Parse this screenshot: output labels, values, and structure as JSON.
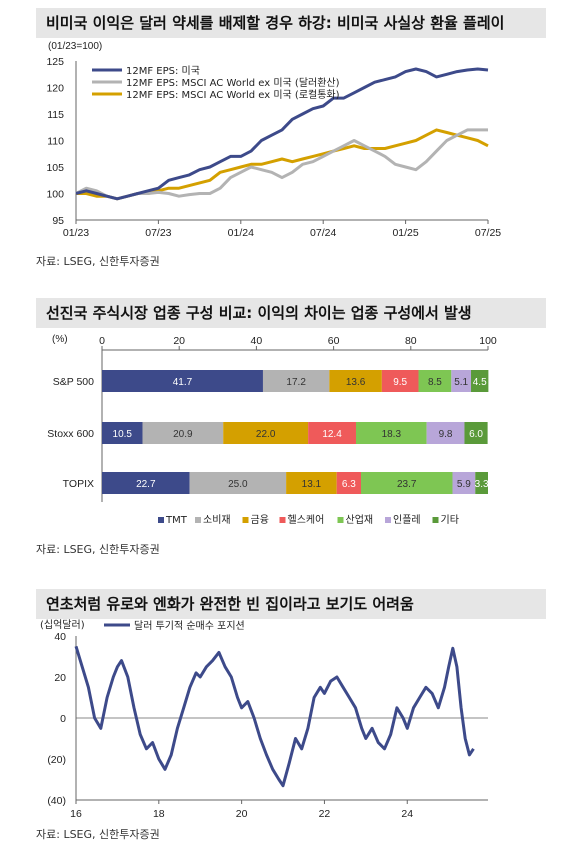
{
  "panels": [
    {
      "title": "비미국 이익은 달러 약세를 배제할 경우 하강: 비미국 사실상 환율 플레이",
      "source": "자료: LSEG, 신한투자증권"
    },
    {
      "title": "선진국 주식시장 업종 구성 비교: 이익의 차이는 업종 구성에서 발생",
      "source": "자료: LSEG, 신한투자증권"
    },
    {
      "title": "연초처럼 유로와 엔화가 완전한 빈 집이라고 보기도 어려움",
      "source": "자료: LSEG, 신한투자증권"
    }
  ],
  "chart_data": [
    {
      "type": "line",
      "unit_label": "(01/23=100)",
      "x_ticks": [
        "01/23",
        "07/23",
        "01/24",
        "07/24",
        "01/25",
        "07/25"
      ],
      "ylim": [
        95,
        125
      ],
      "y_ticks": [
        95,
        100,
        105,
        110,
        115,
        120,
        125
      ],
      "colors": [
        "#3d4a8a",
        "#b3b3b3",
        "#d4a000"
      ],
      "series": [
        {
          "name": "12MF EPS: 미국",
          "color": "#3d4a8a",
          "points": [
            [
              0,
              100
            ],
            [
              1,
              100.5
            ],
            [
              2,
              100
            ],
            [
              3,
              99.5
            ],
            [
              4,
              99
            ],
            [
              5,
              99.5
            ],
            [
              6,
              100
            ],
            [
              7,
              100.5
            ],
            [
              8,
              101
            ],
            [
              9,
              102.5
            ],
            [
              10,
              103
            ],
            [
              11,
              103.5
            ],
            [
              12,
              104.5
            ],
            [
              13,
              105
            ],
            [
              14,
              106
            ],
            [
              15,
              107
            ],
            [
              16,
              107
            ],
            [
              17,
              108
            ],
            [
              18,
              110
            ],
            [
              19,
              111
            ],
            [
              20,
              112
            ],
            [
              21,
              114
            ],
            [
              22,
              115
            ],
            [
              23,
              116
            ],
            [
              24,
              116.5
            ],
            [
              25,
              118
            ],
            [
              26,
              118
            ],
            [
              27,
              119
            ],
            [
              28,
              120
            ],
            [
              29,
              121
            ],
            [
              30,
              121.5
            ],
            [
              31,
              122
            ],
            [
              32,
              123
            ],
            [
              33,
              123.5
            ],
            [
              34,
              123
            ],
            [
              35,
              122
            ],
            [
              36,
              122.5
            ],
            [
              37,
              123
            ],
            [
              38,
              123.3
            ],
            [
              39,
              123.5
            ],
            [
              40,
              123.3
            ]
          ]
        },
        {
          "name": "12MF EPS: MSCI AC World ex 미국 (달러환산)",
          "color": "#b3b3b3",
          "points": [
            [
              0,
              100
            ],
            [
              1,
              101
            ],
            [
              2,
              100.5
            ],
            [
              3,
              99.5
            ],
            [
              4,
              99
            ],
            [
              5,
              99.5
            ],
            [
              6,
              100
            ],
            [
              7,
              100
            ],
            [
              8,
              100.2
            ],
            [
              9,
              100
            ],
            [
              10,
              99.5
            ],
            [
              11,
              99.8
            ],
            [
              12,
              100
            ],
            [
              13,
              100
            ],
            [
              14,
              101
            ],
            [
              15,
              103
            ],
            [
              16,
              104
            ],
            [
              17,
              105
            ],
            [
              18,
              104.5
            ],
            [
              19,
              104
            ],
            [
              20,
              103
            ],
            [
              21,
              104
            ],
            [
              22,
              105.5
            ],
            [
              23,
              106
            ],
            [
              24,
              107
            ],
            [
              25,
              108
            ],
            [
              26,
              109
            ],
            [
              27,
              110
            ],
            [
              28,
              109
            ],
            [
              29,
              108
            ],
            [
              30,
              107
            ],
            [
              31,
              105.5
            ],
            [
              32,
              105
            ],
            [
              33,
              104.5
            ],
            [
              34,
              106
            ],
            [
              35,
              108
            ],
            [
              36,
              110
            ],
            [
              37,
              111
            ],
            [
              38,
              112
            ],
            [
              39,
              112
            ],
            [
              40,
              112
            ]
          ]
        },
        {
          "name": "12MF EPS: MSCI AC World ex 미국 (로컬통화)",
          "color": "#d4a000",
          "points": [
            [
              0,
              100
            ],
            [
              1,
              100
            ],
            [
              2,
              99.5
            ],
            [
              3,
              99.5
            ],
            [
              4,
              99
            ],
            [
              5,
              99.5
            ],
            [
              6,
              100
            ],
            [
              7,
              100
            ],
            [
              8,
              100.5
            ],
            [
              9,
              101
            ],
            [
              10,
              101
            ],
            [
              11,
              101.5
            ],
            [
              12,
              102
            ],
            [
              13,
              102.5
            ],
            [
              14,
              104
            ],
            [
              15,
              104.5
            ],
            [
              16,
              105
            ],
            [
              17,
              105.5
            ],
            [
              18,
              105.5
            ],
            [
              19,
              106
            ],
            [
              20,
              106.5
            ],
            [
              21,
              106
            ],
            [
              22,
              106.5
            ],
            [
              23,
              107
            ],
            [
              24,
              107.5
            ],
            [
              25,
              108
            ],
            [
              26,
              108.5
            ],
            [
              27,
              109
            ],
            [
              28,
              108.5
            ],
            [
              29,
              108.5
            ],
            [
              30,
              108.5
            ],
            [
              31,
              109
            ],
            [
              32,
              109.5
            ],
            [
              33,
              110
            ],
            [
              34,
              111
            ],
            [
              35,
              112
            ],
            [
              36,
              111.5
            ],
            [
              37,
              111
            ],
            [
              38,
              110.5
            ],
            [
              39,
              110
            ],
            [
              40,
              109
            ]
          ]
        }
      ]
    },
    {
      "type": "bar",
      "unit_label": "(%)",
      "stacked": true,
      "orientation": "horizontal",
      "xlim": [
        0,
        100
      ],
      "x_ticks": [
        0,
        20,
        40,
        60,
        80,
        100
      ],
      "categories": [
        "S&P 500",
        "Stoxx 600",
        "TOPIX"
      ],
      "series": [
        {
          "name": "TMT",
          "color": "#3d4a8a",
          "values": [
            41.7,
            10.5,
            22.7
          ]
        },
        {
          "name": "소비재",
          "color": "#b3b3b3",
          "values": [
            17.2,
            20.9,
            25.0
          ]
        },
        {
          "name": "금융",
          "color": "#d4a000",
          "values": [
            13.6,
            22.0,
            13.1
          ]
        },
        {
          "name": "헬스케어",
          "color": "#ef5a5a",
          "values": [
            9.5,
            12.4,
            6.3
          ]
        },
        {
          "name": "산업재",
          "color": "#7ec653",
          "values": [
            8.5,
            18.3,
            23.7
          ]
        },
        {
          "name": "인플레",
          "color": "#b8a6d9",
          "values": [
            5.1,
            9.8,
            5.9
          ]
        },
        {
          "name": "기타",
          "color": "#5a9a3a",
          "values": [
            4.5,
            6.0,
            3.3
          ]
        }
      ]
    },
    {
      "type": "line",
      "unit_label": "(십억달러)",
      "x_ticks": [
        "16",
        "18",
        "20",
        "22",
        "24"
      ],
      "ylim": [
        -40,
        40
      ],
      "y_ticks": [
        "40",
        "20",
        "0",
        "(20)",
        "(40)"
      ],
      "y_values": [
        40,
        20,
        0,
        -20,
        -40
      ],
      "series": [
        {
          "name": "달러 투기적 순매수 포지션",
          "color": "#3d4a8a",
          "points": [
            [
              2016.0,
              35
            ],
            [
              2016.15,
              25
            ],
            [
              2016.3,
              15
            ],
            [
              2016.45,
              0
            ],
            [
              2016.6,
              -5
            ],
            [
              2016.75,
              10
            ],
            [
              2016.9,
              20
            ],
            [
              2017.0,
              25
            ],
            [
              2017.1,
              28
            ],
            [
              2017.25,
              20
            ],
            [
              2017.4,
              5
            ],
            [
              2017.55,
              -8
            ],
            [
              2017.7,
              -15
            ],
            [
              2017.85,
              -12
            ],
            [
              2018.0,
              -20
            ],
            [
              2018.15,
              -25
            ],
            [
              2018.3,
              -18
            ],
            [
              2018.45,
              -5
            ],
            [
              2018.6,
              5
            ],
            [
              2018.75,
              15
            ],
            [
              2018.9,
              22
            ],
            [
              2019.0,
              20
            ],
            [
              2019.15,
              25
            ],
            [
              2019.3,
              28
            ],
            [
              2019.45,
              32
            ],
            [
              2019.6,
              25
            ],
            [
              2019.75,
              20
            ],
            [
              2019.9,
              10
            ],
            [
              2020.0,
              5
            ],
            [
              2020.15,
              8
            ],
            [
              2020.3,
              0
            ],
            [
              2020.45,
              -10
            ],
            [
              2020.6,
              -18
            ],
            [
              2020.75,
              -25
            ],
            [
              2020.9,
              -30
            ],
            [
              2021.0,
              -33
            ],
            [
              2021.15,
              -22
            ],
            [
              2021.3,
              -10
            ],
            [
              2021.45,
              -15
            ],
            [
              2021.6,
              -5
            ],
            [
              2021.75,
              10
            ],
            [
              2021.9,
              15
            ],
            [
              2022.0,
              12
            ],
            [
              2022.15,
              18
            ],
            [
              2022.3,
              20
            ],
            [
              2022.45,
              15
            ],
            [
              2022.6,
              10
            ],
            [
              2022.75,
              5
            ],
            [
              2022.9,
              -5
            ],
            [
              2023.0,
              -10
            ],
            [
              2023.15,
              -5
            ],
            [
              2023.3,
              -12
            ],
            [
              2023.45,
              -15
            ],
            [
              2023.6,
              -8
            ],
            [
              2023.75,
              5
            ],
            [
              2023.9,
              0
            ],
            [
              2024.0,
              -5
            ],
            [
              2024.15,
              5
            ],
            [
              2024.3,
              10
            ],
            [
              2024.45,
              15
            ],
            [
              2024.6,
              12
            ],
            [
              2024.75,
              5
            ],
            [
              2024.9,
              15
            ],
            [
              2025.0,
              25
            ],
            [
              2025.1,
              34
            ],
            [
              2025.2,
              25
            ],
            [
              2025.3,
              5
            ],
            [
              2025.4,
              -10
            ],
            [
              2025.5,
              -18
            ],
            [
              2025.6,
              -15
            ]
          ]
        }
      ]
    }
  ]
}
